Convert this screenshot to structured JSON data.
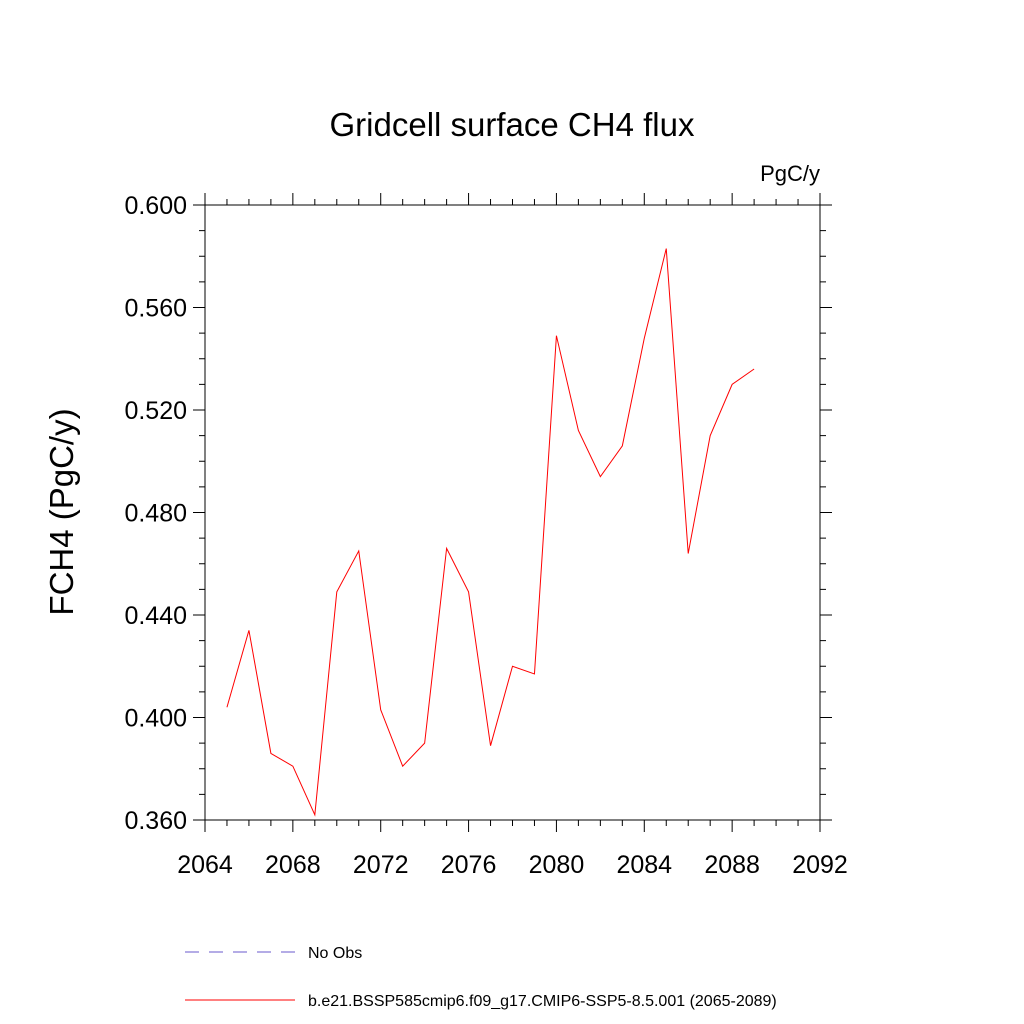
{
  "chart_data": {
    "type": "line",
    "title": "Gridcell surface CH4 flux",
    "units_label": "PgC/y",
    "xlabel": "",
    "ylabel": "FCH4  (PgC/y)",
    "xlim": [
      2064,
      2092
    ],
    "ylim": [
      0.36,
      0.6
    ],
    "x_ticks": [
      2064,
      2068,
      2072,
      2076,
      2080,
      2084,
      2088,
      2092
    ],
    "x_tick_labels": [
      "2064",
      "2068",
      "2072",
      "2076",
      "2080",
      "2084",
      "2088",
      "2092"
    ],
    "y_ticks": [
      0.36,
      0.4,
      0.44,
      0.48,
      0.52,
      0.56,
      0.6
    ],
    "y_tick_labels": [
      "0.360",
      "0.400",
      "0.440",
      "0.480",
      "0.520",
      "0.560",
      "0.600"
    ],
    "grid": false,
    "legend_position": "bottom",
    "series": [
      {
        "name": "No Obs",
        "color": "#6a5acd",
        "style": "dashed",
        "x": [],
        "values": []
      },
      {
        "name": "b.e21.BSSP585cmip6.f09_g17.CMIP6-SSP5-8.5.001 (2065-2089)",
        "color": "#ff0000",
        "style": "solid",
        "x": [
          2065,
          2066,
          2067,
          2068,
          2069,
          2070,
          2071,
          2072,
          2073,
          2074,
          2075,
          2076,
          2077,
          2078,
          2079,
          2080,
          2081,
          2082,
          2083,
          2084,
          2085,
          2086,
          2087,
          2088,
          2089
        ],
        "values": [
          0.404,
          0.434,
          0.386,
          0.381,
          0.362,
          0.449,
          0.465,
          0.403,
          0.381,
          0.39,
          0.466,
          0.449,
          0.389,
          0.42,
          0.417,
          0.549,
          0.512,
          0.494,
          0.506,
          0.548,
          0.583,
          0.464,
          0.51,
          0.53,
          0.536
        ]
      }
    ]
  }
}
